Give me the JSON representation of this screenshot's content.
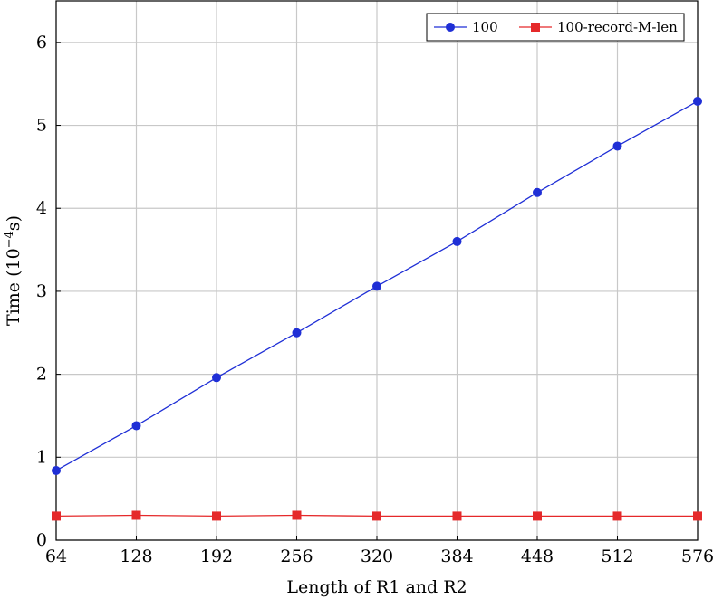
{
  "chart_data": {
    "type": "line",
    "title": "",
    "xlabel": "Length of R1 and R2",
    "ylabel": "Time (10",
    "ylabel_exponent": "−4",
    "ylabel_suffix": "s)",
    "x": [
      64,
      128,
      192,
      256,
      320,
      384,
      448,
      512,
      576
    ],
    "xlim": [
      64,
      576
    ],
    "ylim": [
      0,
      6.5
    ],
    "x_ticks": [
      64,
      128,
      192,
      256,
      320,
      384,
      448,
      512,
      576
    ],
    "y_ticks": [
      0,
      1,
      2,
      3,
      4,
      5,
      6
    ],
    "grid": true,
    "legend_position": "top-right",
    "series": [
      {
        "name": "100",
        "color": "#1f2fd6",
        "marker": "circle",
        "values": [
          0.84,
          1.38,
          1.96,
          2.5,
          3.06,
          3.6,
          4.19,
          4.75,
          5.29
        ]
      },
      {
        "name": "100-record-M-len",
        "color": "#e5292a",
        "marker": "square",
        "values": [
          0.29,
          0.3,
          0.29,
          0.3,
          0.29,
          0.29,
          0.29,
          0.29,
          0.29
        ]
      }
    ]
  }
}
